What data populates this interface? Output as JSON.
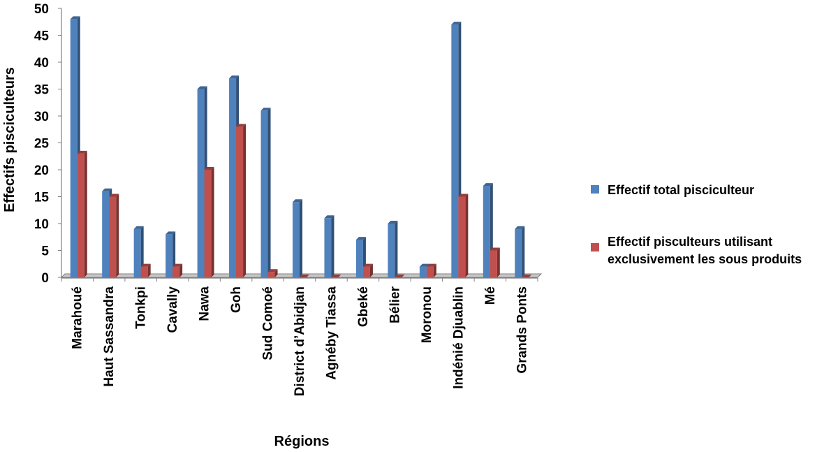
{
  "chart_data": {
    "type": "bar",
    "title": "",
    "xlabel": "Régions",
    "ylabel": "Effectifs pisciculteurs",
    "ylim": [
      0,
      50
    ],
    "yticks": [
      0,
      5,
      10,
      15,
      20,
      25,
      30,
      35,
      40,
      45,
      50
    ],
    "grid": false,
    "legend_position": "right",
    "categories": [
      "Marahoué",
      "Haut Sassandra",
      "Tonkpi",
      "Cavally",
      "Nawa",
      "Goh",
      "Sud Comoé",
      "District d’Abidjan",
      "Agnéby Tiassa",
      "Gbeké",
      "Bélier",
      "Moronou",
      "Indénié Djuablin",
      "Mé",
      "Grands Ponts"
    ],
    "series": [
      {
        "name": "Effectif total pisciculteur",
        "color": "#4f81bd",
        "values": [
          48,
          16,
          9,
          8,
          35,
          37,
          31,
          14,
          11,
          7,
          10,
          2,
          47,
          17,
          9
        ]
      },
      {
        "name": "Effectif pisculteurs utilisant exclusivement les sous produits",
        "color": "#c0504d",
        "values": [
          23,
          15,
          2,
          2,
          20,
          28,
          1,
          0,
          0,
          2,
          0,
          2,
          15,
          5,
          0
        ]
      }
    ]
  }
}
